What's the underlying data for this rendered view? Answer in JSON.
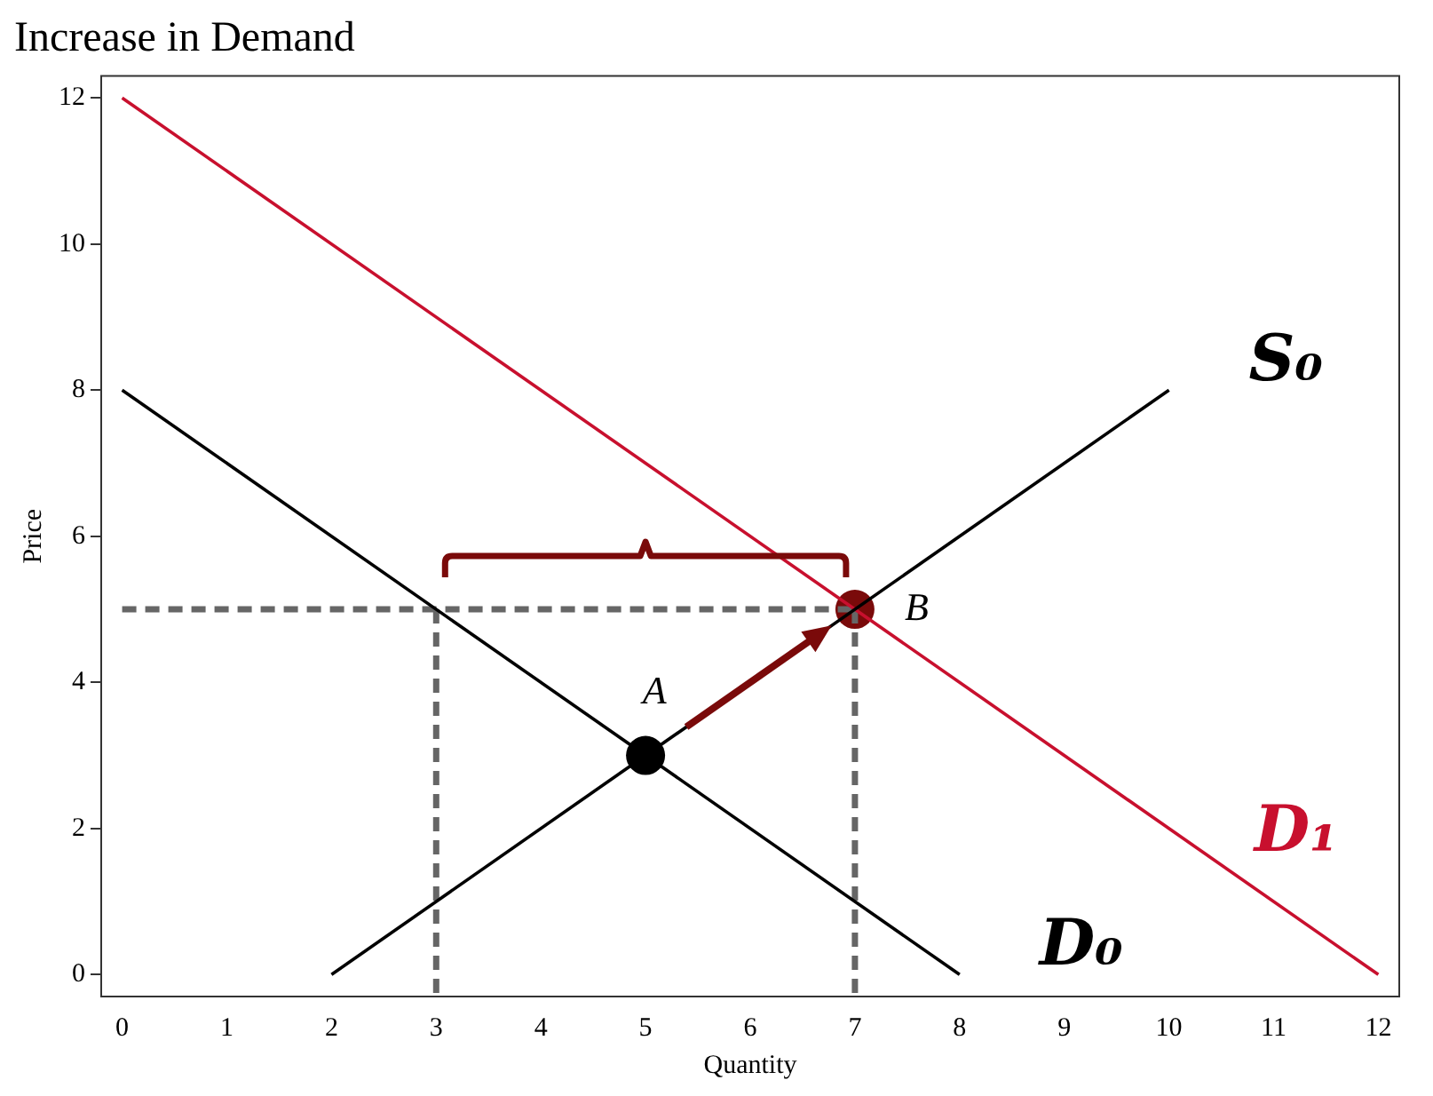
{
  "chart_data": {
    "type": "line",
    "title": "Increase in Demand",
    "xlabel": "Quantity",
    "ylabel": "Price",
    "xlim": [
      -0.2,
      12.2
    ],
    "ylim": [
      -0.3,
      12.3
    ],
    "xticks": [
      0,
      1,
      2,
      3,
      4,
      5,
      6,
      7,
      8,
      9,
      10,
      11,
      12
    ],
    "yticks": [
      0,
      2,
      4,
      6,
      8,
      10,
      12
    ],
    "grid": false,
    "legend": false,
    "marker": "none",
    "series": [
      {
        "name": "S₀",
        "color": "#000000",
        "x": [
          2,
          10
        ],
        "values": [
          0,
          8
        ]
      },
      {
        "name": "D₀",
        "color": "#000000",
        "x": [
          0,
          8
        ],
        "values": [
          8,
          0
        ]
      },
      {
        "name": "D₁",
        "color": "#c8102e",
        "x": [
          0,
          12
        ],
        "values": [
          12,
          0
        ]
      },
      {
        "color": "#666666",
        "line_style": "dashed",
        "x": [
          0,
          7
        ],
        "values": [
          5,
          5
        ]
      },
      {
        "color": "#666666",
        "line_style": "dashed",
        "x": [
          3,
          3
        ],
        "values": [
          5,
          -0.3
        ]
      },
      {
        "color": "#666666",
        "line_style": "dashed",
        "x": [
          7,
          7
        ],
        "values": [
          5,
          -0.3
        ]
      },
      {
        "type": "scatter",
        "marker": "circle",
        "color": "#000000",
        "x": [
          5
        ],
        "values": [
          3
        ]
      },
      {
        "type": "scatter",
        "marker": "circle",
        "color": "#7a0a0a",
        "x": [
          7
        ],
        "values": [
          5
        ]
      }
    ],
    "annotations": [
      {
        "text": "A",
        "x": 5,
        "y": 3
      },
      {
        "text": "B",
        "x": 7,
        "y": 5
      }
    ]
  }
}
